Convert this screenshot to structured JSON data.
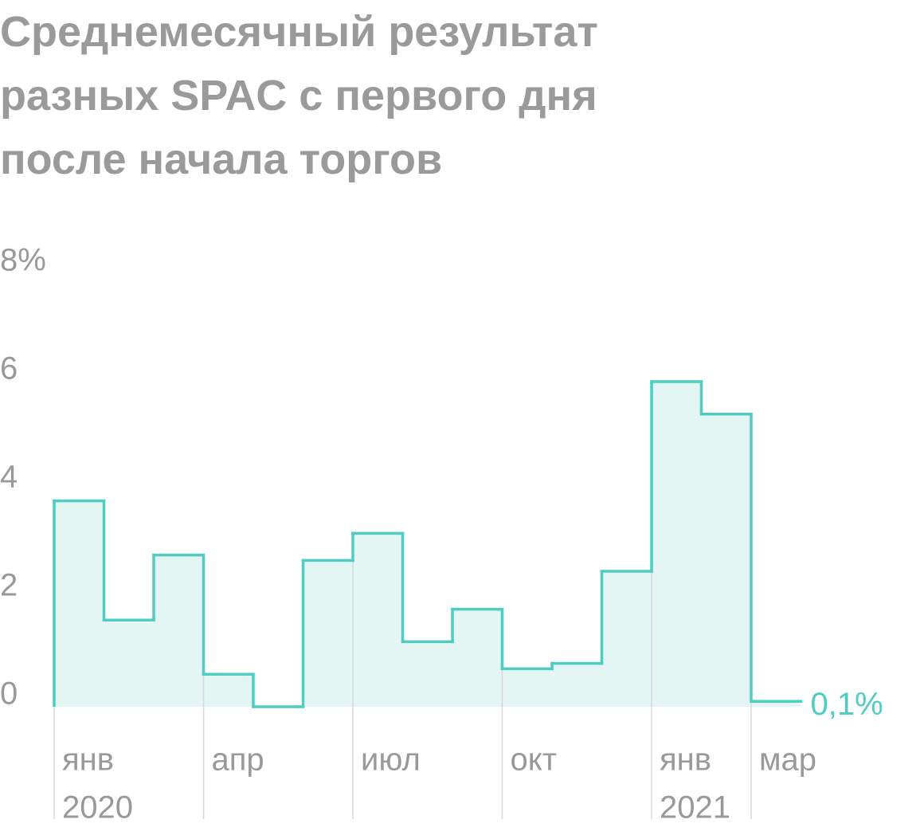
{
  "chart_data": {
    "type": "step",
    "title": [
      "Среднемесячный результат",
      "разных SPAC с первого дня",
      "после начала торгов"
    ],
    "categories": [
      "янв",
      null,
      null,
      "апр",
      null,
      null,
      "июл",
      null,
      null,
      "окт",
      null,
      null,
      "янв",
      null,
      "мар"
    ],
    "years": [
      "2020",
      null,
      null,
      null,
      null,
      null,
      null,
      null,
      null,
      null,
      null,
      null,
      "2021",
      null,
      null
    ],
    "values": [
      3.8,
      1.6,
      2.8,
      0.6,
      0,
      2.7,
      3.2,
      1.2,
      1.8,
      0.7,
      0.8,
      2.5,
      6.0,
      5.4,
      0.1
    ],
    "value_labels": [
      null,
      null,
      null,
      null,
      null,
      null,
      null,
      null,
      null,
      null,
      null,
      null,
      null,
      null,
      "0,1%"
    ],
    "color": "#4fcdc2",
    "fill": "#e3f6f4",
    "ylim": [
      0,
      8
    ],
    "yticks": [
      0,
      2,
      4,
      6,
      {
        "value": 8,
        "label": "8%"
      }
    ]
  }
}
